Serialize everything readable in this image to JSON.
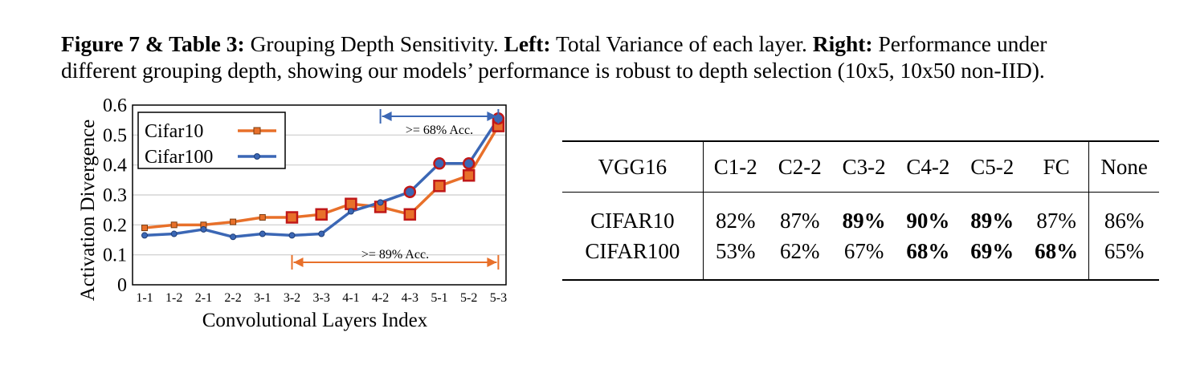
{
  "caption": {
    "fig_label": "Figure 7 & Table 3:",
    "fig_text": " Grouping Depth Sensitivity. ",
    "left_label": "Left:",
    "left_text": " Total Variance of each layer. ",
    "right_label": "Right:",
    "right_text": " Performance under",
    "line2": "different grouping depth, showing our models’ performance is robust to depth selection (10x5, 10x50 non-IID)."
  },
  "chart_data": {
    "type": "line",
    "xlabel": "Convolutional Layers Index",
    "ylabel": "Activation Divergence",
    "categories": [
      "1-1",
      "1-2",
      "2-1",
      "2-2",
      "3-1",
      "3-2",
      "3-3",
      "4-1",
      "4-2",
      "4-3",
      "5-1",
      "5-2",
      "5-3"
    ],
    "yticks": [
      "0",
      "0.1",
      "0.2",
      "0.3",
      "0.4",
      "0.5",
      "0.6"
    ],
    "ylim": [
      0,
      0.6
    ],
    "grid": true,
    "legend": "top-left",
    "series": [
      {
        "name": "Cifar10",
        "color": "#e8702a",
        "marker": "square",
        "values": [
          0.19,
          0.2,
          0.2,
          0.21,
          0.225,
          0.225,
          0.235,
          0.27,
          0.26,
          0.235,
          0.33,
          0.365,
          0.53
        ],
        "highlight": [
          false,
          false,
          false,
          false,
          false,
          true,
          true,
          true,
          true,
          true,
          true,
          true,
          true
        ]
      },
      {
        "name": "Cifar100",
        "color": "#3b67b5",
        "marker": "circle",
        "values": [
          0.165,
          0.17,
          0.185,
          0.16,
          0.17,
          0.165,
          0.17,
          0.245,
          0.275,
          0.31,
          0.405,
          0.405,
          0.555
        ],
        "highlight": [
          false,
          false,
          false,
          false,
          false,
          false,
          false,
          false,
          false,
          true,
          true,
          true,
          true
        ]
      }
    ],
    "annotations": [
      {
        "text": ">= 68% Acc.",
        "color": "#3b67b5",
        "from": "4-2",
        "to": "5-3",
        "position": "top"
      },
      {
        "text": ">= 89% Acc.",
        "color": "#e8702a",
        "from": "3-2",
        "to": "5-3",
        "position": "bottom"
      }
    ]
  },
  "table": {
    "header": [
      "VGG16",
      "C1-2",
      "C2-2",
      "C3-2",
      "C4-2",
      "C5-2",
      "FC",
      "None"
    ],
    "rows": [
      {
        "label": "CIFAR10",
        "cells": [
          "82%",
          "87%",
          "89%",
          "90%",
          "89%",
          "87%",
          "86%"
        ],
        "bold": [
          false,
          false,
          true,
          true,
          true,
          false,
          false
        ]
      },
      {
        "label": "CIFAR100",
        "cells": [
          "53%",
          "62%",
          "67%",
          "68%",
          "69%",
          "68%",
          "65%"
        ],
        "bold": [
          false,
          false,
          false,
          true,
          true,
          true,
          false
        ]
      }
    ]
  }
}
